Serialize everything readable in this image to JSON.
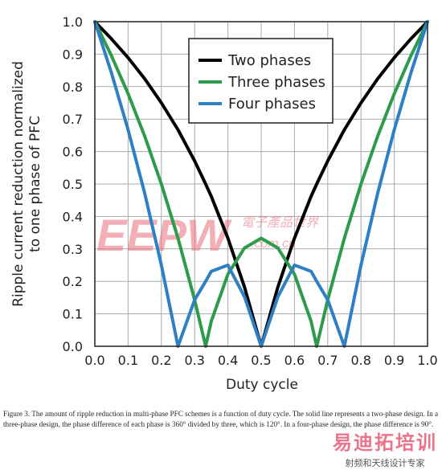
{
  "chart_data": {
    "type": "line",
    "title": "",
    "xlabel": "Duty cycle",
    "ylabel": "Ripple current reduction normalized to one phase of PFC",
    "ylabel_lines": [
      "Ripple current reduction normalized",
      "to one phase of PFC"
    ],
    "xlim": [
      0,
      1
    ],
    "ylim": [
      0,
      1
    ],
    "x_ticks": [
      "0.0",
      "0.1",
      "0.2",
      "0.3",
      "0.4",
      "0.5",
      "0.6",
      "0.7",
      "0.8",
      "0.9",
      "1.0"
    ],
    "y_ticks": [
      "0.0",
      "0.1",
      "0.2",
      "0.3",
      "0.4",
      "0.5",
      "0.6",
      "0.7",
      "0.8",
      "0.9",
      "1.0"
    ],
    "grid": true,
    "legend_position": "top-right",
    "x": [
      0.0,
      0.05,
      0.1,
      0.15,
      0.2,
      0.25,
      0.3,
      0.333,
      0.35,
      0.4,
      0.45,
      0.5,
      0.55,
      0.6,
      0.65,
      0.667,
      0.7,
      0.75,
      0.8,
      0.85,
      0.9,
      0.95,
      1.0
    ],
    "series": [
      {
        "name": "Two phases",
        "color": "#000000",
        "values": [
          1.0,
          0.947,
          0.889,
          0.824,
          0.75,
          0.667,
          0.571,
          0.5,
          0.462,
          0.333,
          0.182,
          0.0,
          0.182,
          0.333,
          0.462,
          0.5,
          0.571,
          0.667,
          0.75,
          0.824,
          0.889,
          0.947,
          1.0
        ]
      },
      {
        "name": "Three phases",
        "color": "#2e9b4b",
        "values": [
          1.0,
          0.895,
          0.778,
          0.647,
          0.5,
          0.333,
          0.143,
          0.0,
          0.077,
          0.222,
          0.303,
          0.333,
          0.303,
          0.222,
          0.077,
          0.0,
          0.143,
          0.333,
          0.5,
          0.647,
          0.778,
          0.895,
          1.0
        ]
      },
      {
        "name": "Four phases",
        "color": "#2f80c3",
        "values": [
          1.0,
          0.842,
          0.667,
          0.471,
          0.25,
          0.0,
          0.143,
          0.2,
          0.231,
          0.25,
          0.152,
          0.0,
          0.152,
          0.25,
          0.231,
          0.2,
          0.143,
          0.0,
          0.25,
          0.471,
          0.667,
          0.842,
          1.0
        ]
      }
    ]
  },
  "watermark": {
    "main": "EEPW",
    "sub": ".com.cn",
    "cn": "電子產品世界"
  },
  "caption": "Figure 3. The amount of ripple reduction in multi-phase PFC schemes is a function of duty cycle. The solid line represents a two-phase design. In a three-phase design, the phase difference of each phase is 360° divided by three, which is 120°. In a four-phase design, the phase difference is 90°.",
  "stamp": {
    "main": "易迪拓培训",
    "sub": "射频和天线设计专家"
  }
}
